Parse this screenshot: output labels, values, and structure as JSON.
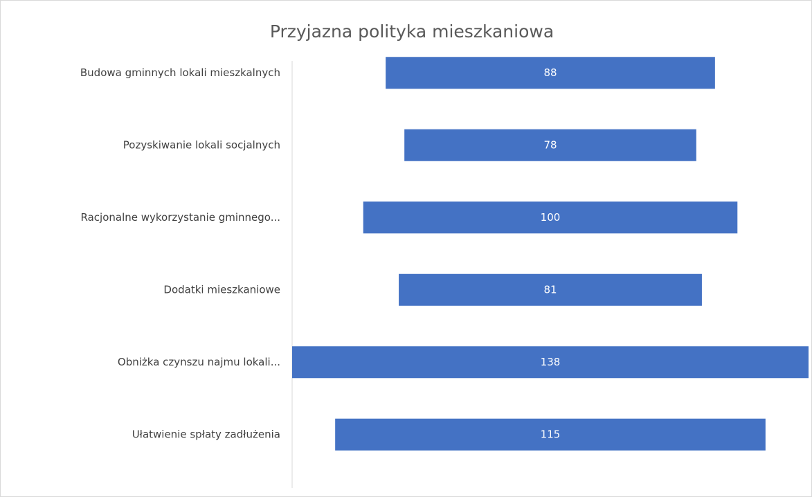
{
  "chart_data": {
    "type": "funnel",
    "title": "Przyjazna polityka mieszkaniowa",
    "categories": [
      "Budowa gminnych lokali mieszkalnych",
      "Pozyskiwanie lokali socjalnych",
      "Racjonalne wykorzystanie gminnego...",
      "Dodatki mieszkaniowe",
      "Obniżka czynszu najmu lokali...",
      "Ułatwienie spłaty zadłużenia"
    ],
    "values": [
      88,
      78,
      100,
      81,
      138,
      115
    ],
    "color": "#4472c4"
  }
}
